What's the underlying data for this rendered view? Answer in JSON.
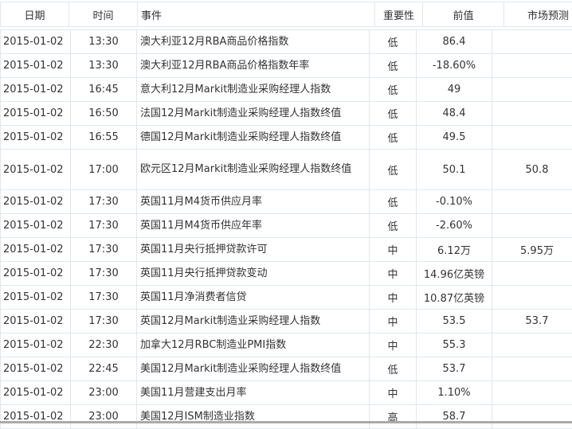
{
  "headers": [
    "日期",
    "时间",
    "事件",
    "重要性",
    "前值",
    "市场预测"
  ],
  "rows": [
    [
      "2015-01-02",
      "13:30",
      "澳大利亚12月RBA商品价格指数",
      "低",
      "86.4",
      ""
    ],
    [
      "2015-01-02",
      "13:30",
      "澳大利亚12月RBA商品价格指数年率",
      "低",
      "-18.60%",
      ""
    ],
    [
      "2015-01-02",
      "16:45",
      "意大利12月Markit制造业采购经理人指数",
      "低",
      "49",
      ""
    ],
    [
      "2015-01-02",
      "16:50",
      "法国12月Markit制造业采购经理人指数终值",
      "低",
      "48.4",
      ""
    ],
    [
      "2015-01-02",
      "16:55",
      "德国12月Markit制造业采购经理人指数终值",
      "低",
      "49.5",
      ""
    ],
    [
      "2015-01-02",
      "17:00",
      "欧元区12月Markit制造业采购经理人指数终值",
      "低",
      "50.1",
      "50.8"
    ],
    [
      "2015-01-02",
      "17:30",
      "英国11月M4货币供应月率",
      "低",
      "-0.10%",
      ""
    ],
    [
      "2015-01-02",
      "17:30",
      "英国11月M4货币供应年率",
      "低",
      "-2.60%",
      ""
    ],
    [
      "2015-01-02",
      "17:30",
      "英国11月央行抵押贷款许可",
      "中",
      "6.12万",
      "5.95万"
    ],
    [
      "2015-01-02",
      "17:30",
      "英国11月央行抵押贷款变动",
      "中",
      "14.96亿英镑",
      ""
    ],
    [
      "2015-01-02",
      "17:30",
      "英国11月净消费者信贷",
      "中",
      "10.87亿英镑",
      ""
    ],
    [
      "2015-01-02",
      "17:30",
      "英国12月Markit制造业采购经理人指数",
      "中",
      "53.5",
      "53.7"
    ],
    [
      "2015-01-02",
      "22:30",
      "加拿大12月RBC制造业PMI指数",
      "中",
      "55.3",
      ""
    ],
    [
      "2015-01-02",
      "22:45",
      "美国12月Markit制造业采购经理人指数终值",
      "低",
      "53.7",
      ""
    ],
    [
      "2015-01-02",
      "23:00",
      "美国11月营建支出月率",
      "中",
      "1.10%",
      ""
    ],
    [
      "2015-01-02",
      "23:00",
      "美国12月ISM制造业指数",
      "高",
      "58.7",
      ""
    ]
  ]
}
